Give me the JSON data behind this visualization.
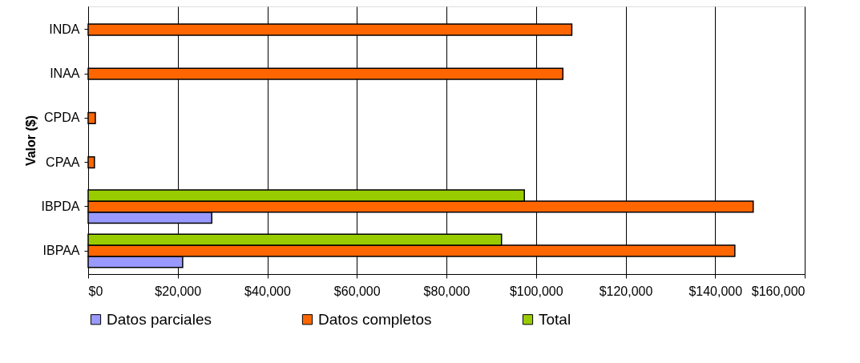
{
  "chart_data": {
    "type": "bar",
    "orientation": "horizontal",
    "ylabel": "Valor ($)",
    "categories": [
      "INDA",
      "INAA",
      "CPDA",
      "CPAA",
      "IBPDA",
      "IBPAA"
    ],
    "series": [
      {
        "name": "Datos parciales",
        "color": "#9999ff",
        "values": [
          null,
          null,
          null,
          null,
          27600,
          21100
        ]
      },
      {
        "name": "Datos completos",
        "color": "#ff6600",
        "values": [
          108000,
          106000,
          1600,
          1400,
          148500,
          144400
        ]
      },
      {
        "name": "Total",
        "color": "#99cc00",
        "values": [
          null,
          null,
          null,
          null,
          97400,
          92300
        ]
      }
    ],
    "xlim": [
      0,
      160000
    ],
    "xticks": [
      {
        "value": 0,
        "label": "$0"
      },
      {
        "value": 20000,
        "label": "$20,000"
      },
      {
        "value": 40000,
        "label": "$40,000"
      },
      {
        "value": 60000,
        "label": "$60,000"
      },
      {
        "value": 80000,
        "label": "$80,000"
      },
      {
        "value": 100000,
        "label": "$100,000"
      },
      {
        "value": 120000,
        "label": "$120,000"
      },
      {
        "value": 140000,
        "label": "$140,000"
      },
      {
        "value": 160000,
        "label": "$160,000"
      }
    ],
    "grid": "x",
    "legend": "bottom"
  }
}
